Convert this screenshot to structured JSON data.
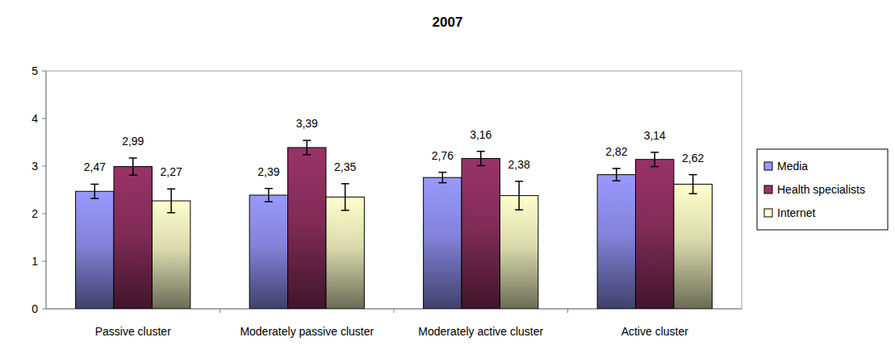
{
  "chart_data": {
    "type": "bar",
    "title": "2007",
    "categories": [
      "Passive cluster",
      "Moderately passive cluster",
      "Moderately active cluster",
      "Active cluster"
    ],
    "series": [
      {
        "name": "Media",
        "color": "#9999ff",
        "values": [
          2.47,
          2.39,
          2.76,
          2.82
        ],
        "value_labels": [
          "2,47",
          "2,39",
          "2,76",
          "2,82"
        ],
        "errors": [
          0.15,
          0.14,
          0.11,
          0.13
        ]
      },
      {
        "name": "Health specialists",
        "color": "#993366",
        "values": [
          2.99,
          3.39,
          3.16,
          3.14
        ],
        "value_labels": [
          "2,99",
          "3,39",
          "3,16",
          "3,14"
        ],
        "errors": [
          0.18,
          0.15,
          0.15,
          0.15
        ]
      },
      {
        "name": "Internet",
        "color": "#ffffcc",
        "values": [
          2.27,
          2.35,
          2.38,
          2.62
        ],
        "value_labels": [
          "2,27",
          "2,35",
          "2,38",
          "2,62"
        ],
        "errors": [
          0.25,
          0.28,
          0.3,
          0.2
        ]
      }
    ],
    "ylim": [
      0,
      5
    ],
    "yticks": [
      0,
      1,
      2,
      3,
      4,
      5
    ],
    "grid": false,
    "legend": "right",
    "data_labels": true
  }
}
